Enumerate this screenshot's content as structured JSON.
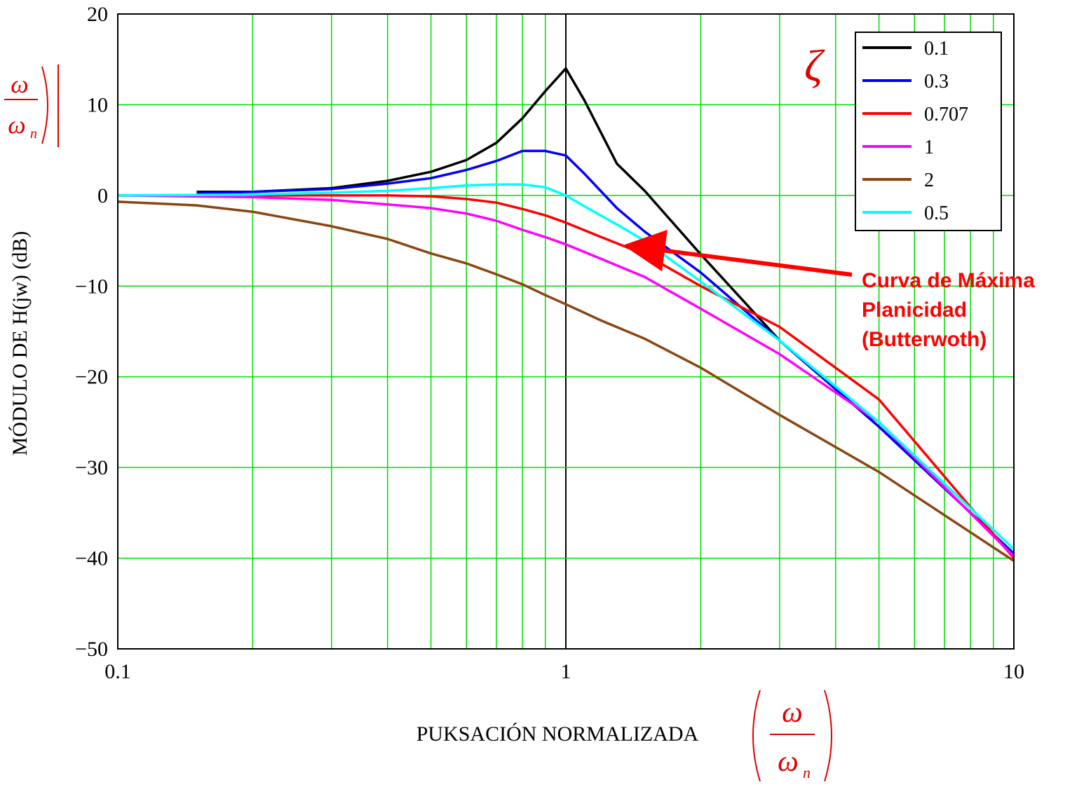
{
  "chart_data": {
    "type": "line",
    "xscale": "log",
    "xlim": [
      0.1,
      10
    ],
    "ylim": [
      -50,
      20
    ],
    "grid": true,
    "xlabel": "PUKSACIÓN NORMALIZADA",
    "ylabel": "MÓDULO DE H(jw) (dB)",
    "x_ticks": [
      "0.1",
      "1",
      "10"
    ],
    "y_ticks": [
      "20",
      "10",
      "0",
      "−10",
      "−20",
      "−30",
      "−40",
      "−50"
    ],
    "legend_title": "ζ",
    "legend_position": "top-right",
    "series": [
      {
        "name": "0.1",
        "color": "#000000",
        "x": [
          0.15,
          0.2,
          0.3,
          0.4,
          0.5,
          0.6,
          0.7,
          0.8,
          0.9,
          1.0,
          1.1,
          1.3,
          1.5,
          2,
          3,
          5,
          10
        ],
        "y": [
          0.4,
          0.4,
          0.8,
          1.6,
          2.6,
          3.9,
          5.8,
          8.5,
          11.5,
          14.0,
          10.5,
          3.5,
          0.5,
          -6.5,
          -16.0,
          -25.5,
          -39.5
        ]
      },
      {
        "name": "0.3",
        "color": "#0000ff",
        "x": [
          0.15,
          0.2,
          0.3,
          0.4,
          0.5,
          0.6,
          0.7,
          0.8,
          0.9,
          1.0,
          1.1,
          1.3,
          1.5,
          2,
          3,
          5,
          10
        ],
        "y": [
          0.2,
          0.4,
          0.7,
          1.3,
          1.9,
          2.8,
          3.8,
          4.9,
          4.9,
          4.4,
          2.4,
          -1.4,
          -4.0,
          -8.5,
          -16.0,
          -25.5,
          -39.5
        ]
      },
      {
        "name": "0.707",
        "color": "#ff0000",
        "x": [
          0.1,
          0.2,
          0.3,
          0.4,
          0.5,
          0.6,
          0.7,
          0.8,
          0.9,
          1.0,
          1.2,
          1.5,
          2,
          3,
          5,
          10
        ],
        "y": [
          0.0,
          0.0,
          0.0,
          0.0,
          -0.1,
          -0.4,
          -0.8,
          -1.5,
          -2.2,
          -3.0,
          -4.6,
          -6.5,
          -10.0,
          -14.5,
          -22.5,
          -40.0
        ]
      },
      {
        "name": "1",
        "color": "#ff00ff",
        "x": [
          0.1,
          0.2,
          0.3,
          0.4,
          0.5,
          0.6,
          0.7,
          0.8,
          0.9,
          1.0,
          1.2,
          1.5,
          2,
          3,
          5,
          10
        ],
        "y": [
          0.0,
          -0.2,
          -0.5,
          -1.0,
          -1.4,
          -2.0,
          -2.8,
          -3.8,
          -4.6,
          -5.4,
          -7.0,
          -9.0,
          -12.5,
          -17.5,
          -25.0,
          -39.8
        ]
      },
      {
        "name": "2",
        "color": "#8b4513",
        "x": [
          0.1,
          0.15,
          0.2,
          0.3,
          0.4,
          0.5,
          0.6,
          0.7,
          0.8,
          0.9,
          1.0,
          1.2,
          1.5,
          2,
          3,
          5,
          10
        ],
        "y": [
          -0.7,
          -1.1,
          -1.8,
          -3.4,
          -4.8,
          -6.4,
          -7.5,
          -8.7,
          -9.8,
          -11.0,
          -12.0,
          -13.8,
          -15.8,
          -19.0,
          -24.2,
          -30.5,
          -40.3
        ]
      },
      {
        "name": "0.5",
        "color": "#00ffff",
        "x": [
          0.1,
          0.2,
          0.3,
          0.4,
          0.5,
          0.6,
          0.7,
          0.8,
          0.9,
          1.0,
          1.1,
          1.3,
          1.5,
          2,
          3,
          5,
          10
        ],
        "y": [
          0.0,
          0.1,
          0.3,
          0.5,
          0.8,
          1.1,
          1.2,
          1.2,
          0.9,
          0.0,
          -1.2,
          -3.2,
          -5.0,
          -9.5,
          -16.0,
          -25.0,
          -39.0
        ]
      }
    ],
    "annotation": {
      "lines": [
        "Curva de Máxima",
        "Planicidad",
        "(Butterwoth)"
      ],
      "color": "#ff0000",
      "points_to": {
        "x": 1.4,
        "y": -5.5
      }
    },
    "math_symbols": {
      "omega": "ω",
      "omega_n_base": "ω",
      "omega_n_sub": "n",
      "zeta": "ζ"
    }
  }
}
